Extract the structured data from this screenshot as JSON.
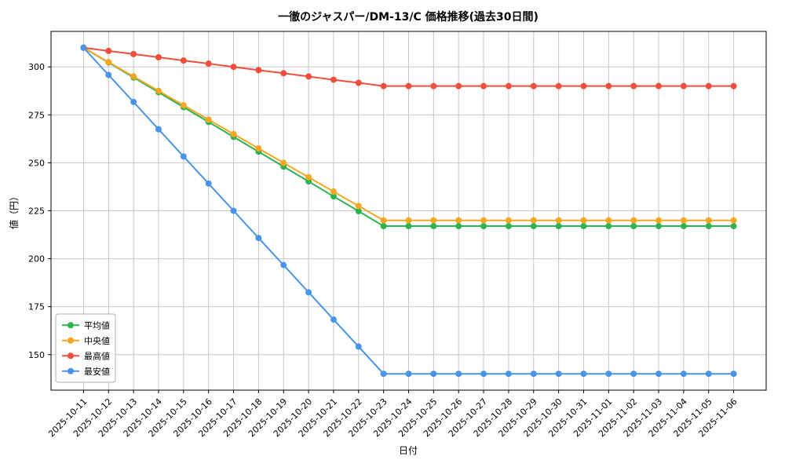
{
  "chart_data": {
    "type": "line",
    "title": "一徹のジャスパー/DM-13/C 価格推移(過去30日間)",
    "xlabel": "日付",
    "ylabel": "値（円）",
    "grid": true,
    "legend_position": "lower left",
    "ylim": [
      131.5,
      318.5
    ],
    "yticks": [
      150,
      175,
      200,
      225,
      250,
      275,
      300
    ],
    "x": [
      "2025-10-11",
      "2025-10-12",
      "2025-10-13",
      "2025-10-14",
      "2025-10-15",
      "2025-10-16",
      "2025-10-17",
      "2025-10-18",
      "2025-10-19",
      "2025-10-20",
      "2025-10-21",
      "2025-10-22",
      "2025-10-23",
      "2025-10-24",
      "2025-10-25",
      "2025-10-26",
      "2025-10-27",
      "2025-10-28",
      "2025-10-29",
      "2025-10-30",
      "2025-10-31",
      "2025-11-01",
      "2025-11-02",
      "2025-11-03",
      "2025-11-04",
      "2025-11-05",
      "2025-11-06"
    ],
    "series": [
      {
        "name": "平均値",
        "color": "#2eb350",
        "values": [
          310,
          302.3,
          294.5,
          286.8,
          279,
          271.3,
          263.5,
          255.8,
          248,
          240.3,
          232.5,
          224.8,
          217,
          217,
          217,
          217,
          217,
          217,
          217,
          217,
          217,
          217,
          217,
          217,
          217,
          217,
          217
        ]
      },
      {
        "name": "中央値",
        "color": "#f5a623",
        "values": [
          310,
          302.5,
          295,
          287.5,
          280,
          272.5,
          265,
          257.5,
          250,
          242.5,
          235,
          227.5,
          220,
          220,
          220,
          220,
          220,
          220,
          220,
          220,
          220,
          220,
          220,
          220,
          220,
          220,
          220
        ]
      },
      {
        "name": "最高値",
        "color": "#ef4e3c",
        "values": [
          310,
          308.3,
          306.7,
          305,
          303.3,
          301.7,
          300,
          298.3,
          296.7,
          295,
          293.3,
          291.7,
          290,
          290,
          290,
          290,
          290,
          290,
          290,
          290,
          290,
          290,
          290,
          290,
          290,
          290,
          290
        ]
      },
      {
        "name": "最安値",
        "color": "#4a94e8",
        "values": [
          310,
          295.8,
          281.7,
          267.5,
          253.3,
          239.2,
          225,
          210.8,
          196.7,
          182.5,
          168.3,
          154.2,
          140,
          140,
          140,
          140,
          140,
          140,
          140,
          140,
          140,
          140,
          140,
          140,
          140,
          140,
          140
        ]
      }
    ]
  }
}
